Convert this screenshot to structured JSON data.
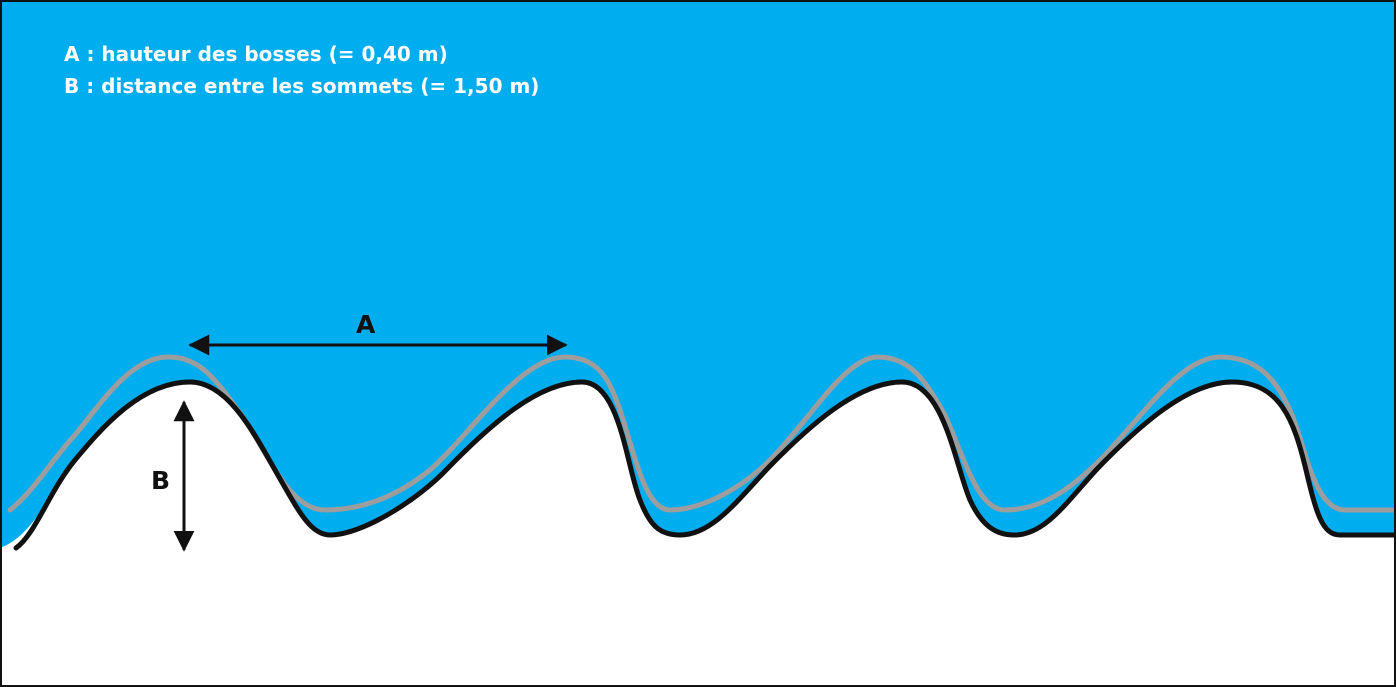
{
  "legend": {
    "line_a": "A : hauteur des bosses (= 0,40 m)",
    "line_b": "B : distance entre les sommets (= 1,50 m)"
  },
  "labels": {
    "a": "A",
    "b": "B"
  },
  "colors": {
    "sky": "#00adef",
    "ground_line": "#111111",
    "snow_line": "#9d9d9d",
    "ground": "#ffffff",
    "frame": "#111111"
  }
}
